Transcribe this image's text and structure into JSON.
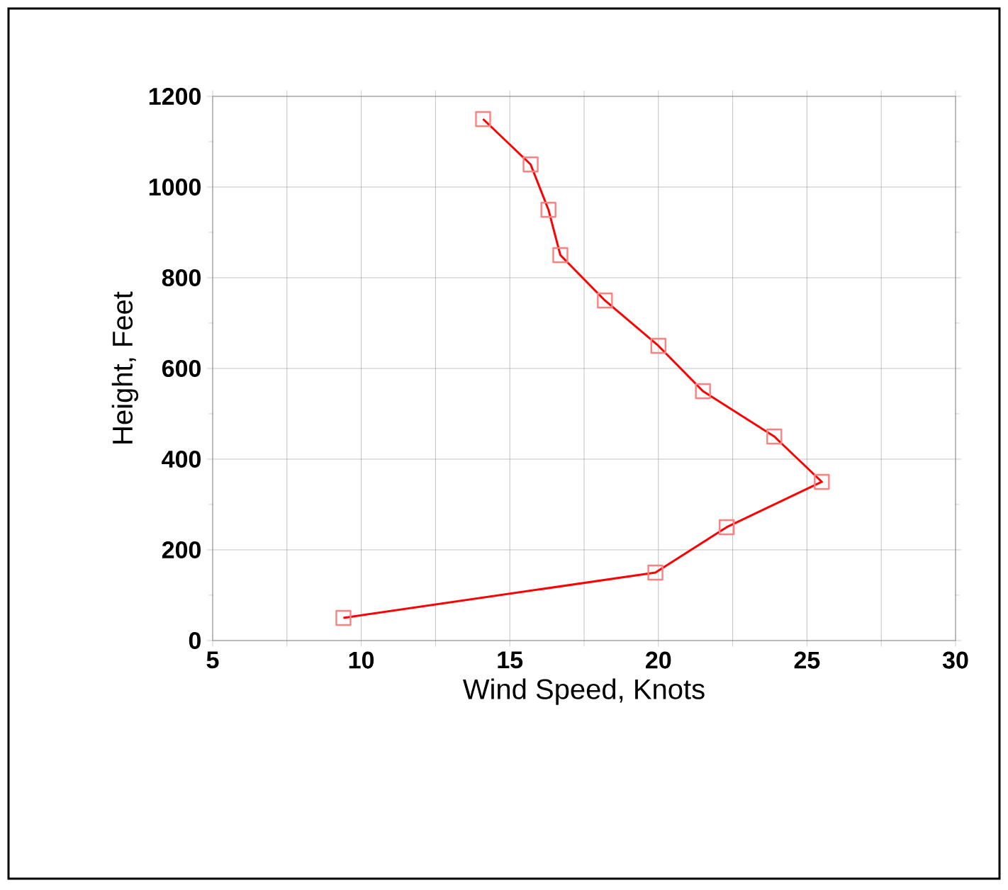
{
  "chart_data": {
    "type": "line",
    "xlabel": "Wind Speed,  Knots",
    "ylabel": "Height,  Feet",
    "x": [
      9.4,
      19.9,
      22.3,
      25.5,
      23.9,
      21.5,
      20.0,
      18.2,
      16.7,
      16.3,
      15.7,
      14.1
    ],
    "series": [
      {
        "color": "#ff0000",
        "values": [
          50,
          150,
          250,
          350,
          450,
          550,
          650,
          750,
          850,
          950,
          1050,
          1150
        ]
      }
    ],
    "xlim": [
      5,
      30
    ],
    "ylim": [
      0,
      1200
    ],
    "xticks": [
      5,
      {
        "value": 7.5,
        "label": null
      },
      10,
      {
        "value": 12.5,
        "label": null
      },
      15,
      {
        "value": 17.5,
        "label": null
      },
      20,
      {
        "value": 22.5,
        "label": null
      },
      25,
      {
        "value": 27.5,
        "label": null
      },
      30
    ],
    "yticks": [
      0,
      200,
      400,
      600,
      800,
      1000,
      1200
    ],
    "grid": true,
    "marker": "square",
    "line_style": "solid"
  }
}
